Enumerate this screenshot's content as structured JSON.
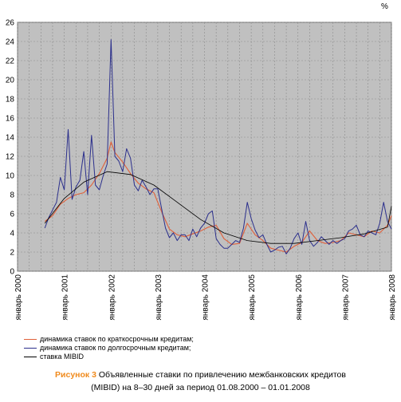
{
  "chart_data": {
    "type": "line",
    "y_unit": "%",
    "ylim": [
      0,
      26
    ],
    "y_ticks": [
      0,
      2,
      4,
      6,
      8,
      10,
      12,
      14,
      16,
      18,
      20,
      22,
      24,
      26
    ],
    "x_ticks": [
      "январь 2000",
      "январь 2001",
      "январь 2002",
      "январь 2003",
      "январь 2004",
      "январь 2005",
      "январь 2006",
      "январь 2007",
      "январь 2008"
    ],
    "x_range": [
      "2000-08",
      "2008-01"
    ],
    "grid": true,
    "legend_position": "bottom-left",
    "series": [
      {
        "name": "динамика ставок по краткосрочным кредитам;",
        "color": "#e0603a",
        "x": [
          "2000-08",
          "2000-10",
          "2000-12",
          "2001-02",
          "2001-04",
          "2001-06",
          "2001-08",
          "2001-10",
          "2001-12",
          "2002-01",
          "2002-02",
          "2002-04",
          "2002-06",
          "2002-08",
          "2002-10",
          "2002-12",
          "2003-02",
          "2003-04",
          "2003-06",
          "2003-08",
          "2003-10",
          "2003-12",
          "2004-02",
          "2004-04",
          "2004-06",
          "2004-08",
          "2004-10",
          "2004-12",
          "2005-02",
          "2005-04",
          "2005-06",
          "2005-08",
          "2005-10",
          "2005-12",
          "2006-02",
          "2006-04",
          "2006-06",
          "2006-08",
          "2006-10",
          "2006-12",
          "2007-02",
          "2007-04",
          "2007-06",
          "2007-08",
          "2007-10",
          "2007-12",
          "2008-01"
        ],
        "values": [
          5.2,
          5.8,
          7.0,
          7.6,
          8.0,
          8.2,
          9.0,
          10.2,
          11.8,
          13.5,
          12.4,
          11.4,
          10.2,
          9.2,
          8.6,
          8.2,
          6.2,
          4.4,
          3.8,
          3.6,
          3.9,
          4.2,
          4.6,
          4.8,
          3.4,
          2.8,
          2.9,
          5.0,
          3.8,
          3.2,
          2.4,
          2.2,
          2.0,
          2.6,
          3.0,
          4.2,
          3.2,
          2.9,
          3.0,
          3.2,
          4.0,
          3.8,
          3.6,
          4.2,
          4.0,
          4.8,
          5.8
        ]
      },
      {
        "name": "динамика ставок по долгосрочным кредитам;",
        "color": "#2b2f8c",
        "x": [
          "2000-08",
          "2000-09",
          "2000-10",
          "2000-11",
          "2000-12",
          "2001-01",
          "2001-02",
          "2001-03",
          "2001-04",
          "2001-05",
          "2001-06",
          "2001-07",
          "2001-08",
          "2001-09",
          "2001-10",
          "2001-11",
          "2001-12",
          "2002-01",
          "2002-02",
          "2002-03",
          "2002-04",
          "2002-05",
          "2002-06",
          "2002-07",
          "2002-08",
          "2002-09",
          "2002-10",
          "2002-11",
          "2002-12",
          "2003-01",
          "2003-02",
          "2003-03",
          "2003-04",
          "2003-05",
          "2003-06",
          "2003-07",
          "2003-08",
          "2003-09",
          "2003-10",
          "2003-11",
          "2003-12",
          "2004-01",
          "2004-02",
          "2004-03",
          "2004-04",
          "2004-05",
          "2004-06",
          "2004-07",
          "2004-08",
          "2004-09",
          "2004-10",
          "2004-11",
          "2004-12",
          "2005-01",
          "2005-02",
          "2005-03",
          "2005-04",
          "2005-05",
          "2005-06",
          "2005-07",
          "2005-08",
          "2005-09",
          "2005-10",
          "2005-11",
          "2005-12",
          "2006-01",
          "2006-02",
          "2006-03",
          "2006-04",
          "2006-05",
          "2006-06",
          "2006-07",
          "2006-08",
          "2006-09",
          "2006-10",
          "2006-11",
          "2006-12",
          "2007-01",
          "2007-02",
          "2007-03",
          "2007-04",
          "2007-05",
          "2007-06",
          "2007-07",
          "2007-08",
          "2007-09",
          "2007-10",
          "2007-11",
          "2007-12",
          "2008-01"
        ],
        "values": [
          4.5,
          5.6,
          6.4,
          7.2,
          9.8,
          8.5,
          14.8,
          7.5,
          8.8,
          9.5,
          12.5,
          8.0,
          14.2,
          9.0,
          8.5,
          10.0,
          11.2,
          24.2,
          12.0,
          11.5,
          10.4,
          12.8,
          11.8,
          9.0,
          8.4,
          9.5,
          8.8,
          8.0,
          8.6,
          8.6,
          6.5,
          4.5,
          3.5,
          4.0,
          3.2,
          3.8,
          3.8,
          3.2,
          4.4,
          3.6,
          4.5,
          5.0,
          6.0,
          6.3,
          3.4,
          2.8,
          2.4,
          2.4,
          2.8,
          3.2,
          3.0,
          4.5,
          7.2,
          5.5,
          4.3,
          3.5,
          3.8,
          2.8,
          2.0,
          2.2,
          2.5,
          2.6,
          1.8,
          2.4,
          3.4,
          4.0,
          2.8,
          5.2,
          3.2,
          2.6,
          3.0,
          3.6,
          3.2,
          2.8,
          3.2,
          2.9,
          3.2,
          3.4,
          4.2,
          4.4,
          4.8,
          3.8,
          3.6,
          4.2,
          4.0,
          3.8,
          5.0,
          7.2,
          5.2,
          4.4
        ]
      },
      {
        "name": "ставка MIBID",
        "color": "#000000",
        "x": [
          "2000-08",
          "2001-01",
          "2001-06",
          "2001-12",
          "2002-06",
          "2002-12",
          "2003-06",
          "2003-12",
          "2004-06",
          "2004-12",
          "2005-06",
          "2005-12",
          "2006-06",
          "2006-12",
          "2007-06",
          "2007-12",
          "2008-01"
        ],
        "values": [
          5.0,
          7.6,
          9.3,
          10.4,
          10.1,
          9.0,
          7.2,
          5.4,
          4.0,
          3.2,
          2.9,
          2.9,
          3.2,
          3.5,
          3.9,
          4.6,
          6.8
        ]
      }
    ]
  },
  "caption": {
    "label": "Рисунок 3",
    "line1": "Объявленные ставки по привлечению межбанковских кредитов",
    "line2": "(MIBID) на 8–30 дней за период 01.08.2000 – 01.01.2008"
  },
  "colors": {
    "plot_bg": "#c0c0c0",
    "grid": "#8c8c8c",
    "caption_accent": "#f08a1c"
  }
}
